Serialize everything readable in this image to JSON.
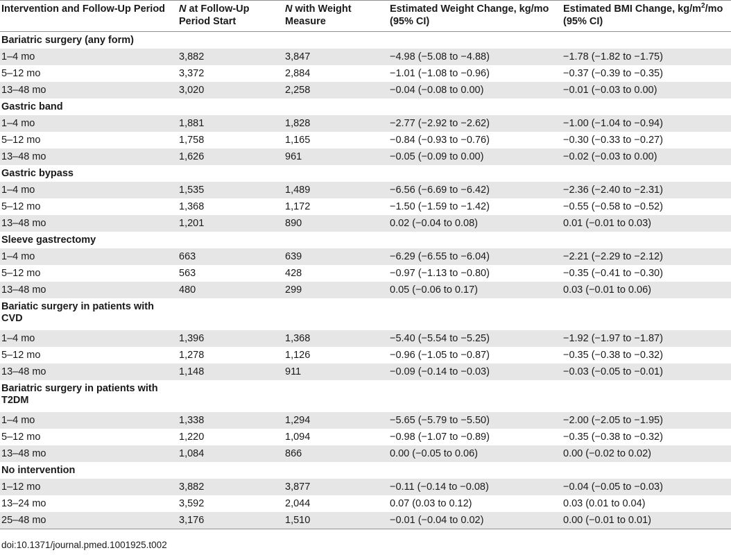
{
  "header": {
    "col1": "Intervention and Follow-Up Period",
    "col2_italic": "N",
    "col2_rest": " at Follow-Up Period Start",
    "col3_italic": "N",
    "col3_rest": " with Weight Measure",
    "col4": "Estimated Weight Change, kg/mo (95% CI)",
    "col5_a": "Estimated BMI Change, kg/m",
    "col5_sup": "2",
    "col5_b": "/mo (95% CI)"
  },
  "groups": [
    {
      "title": "Bariatric surgery (any form)",
      "rows": [
        {
          "period": "1–4 mo",
          "n_start": "3,882",
          "n_weight": "3,847",
          "weight": "−4.98 (−5.08 to −4.88)",
          "bmi": "−1.78 (−1.82 to −1.75)"
        },
        {
          "period": "5–12 mo",
          "n_start": "3,372",
          "n_weight": "2,884",
          "weight": "−1.01 (−1.08 to −0.96)",
          "bmi": "−0.37 (−0.39 to −0.35)"
        },
        {
          "period": "13–48 mo",
          "n_start": "3,020",
          "n_weight": "2,258",
          "weight": "−0.04 (−0.08 to 0.00)",
          "bmi": "−0.01 (−0.03 to 0.00)"
        }
      ]
    },
    {
      "title": "Gastric band",
      "rows": [
        {
          "period": "1–4 mo",
          "n_start": "1,881",
          "n_weight": "1,828",
          "weight": "−2.77 (−2.92 to −2.62)",
          "bmi": "−1.00 (−1.04 to −0.94)"
        },
        {
          "period": "5–12 mo",
          "n_start": "1,758",
          "n_weight": "1,165",
          "weight": "−0.84 (−0.93 to −0.76)",
          "bmi": "−0.30 (−0.33 to −0.27)"
        },
        {
          "period": "13–48 mo",
          "n_start": "1,626",
          "n_weight": "961",
          "weight": "−0.05 (−0.09 to 0.00)",
          "bmi": "−0.02 (−0.03 to 0.00)"
        }
      ]
    },
    {
      "title": "Gastric bypass",
      "rows": [
        {
          "period": "1–4 mo",
          "n_start": "1,535",
          "n_weight": "1,489",
          "weight": "−6.56 (−6.69 to −6.42)",
          "bmi": "−2.36 (−2.40 to −2.31)"
        },
        {
          "period": "5–12 mo",
          "n_start": "1,368",
          "n_weight": "1,172",
          "weight": "−1.50 (−1.59 to −1.42)",
          "bmi": "−0.55 (−0.58 to −0.52)"
        },
        {
          "period": "13–48 mo",
          "n_start": "1,201",
          "n_weight": "890",
          "weight": "0.02 (−0.04 to 0.08)",
          "bmi": "0.01 (−0.01 to 0.03)"
        }
      ]
    },
    {
      "title": "Sleeve gastrectomy",
      "rows": [
        {
          "period": "1–4 mo",
          "n_start": "663",
          "n_weight": "639",
          "weight": "−6.29 (−6.55 to −6.04)",
          "bmi": "−2.21 (−2.29 to −2.12)"
        },
        {
          "period": "5–12 mo",
          "n_start": "563",
          "n_weight": "428",
          "weight": "−0.97 (−1.13 to −0.80)",
          "bmi": "−0.35 (−0.41 to −0.30)"
        },
        {
          "period": "13–48 mo",
          "n_start": "480",
          "n_weight": "299",
          "weight": "0.05 (−0.06 to 0.17)",
          "bmi": "0.03 (−0.01 to 0.06)"
        }
      ]
    },
    {
      "title": "Bariatic surgery in patients with CVD",
      "rows": [
        {
          "period": "1–4 mo",
          "n_start": "1,396",
          "n_weight": "1,368",
          "weight": "−5.40 (−5.54 to −5.25)",
          "bmi": "−1.92 (−1.97 to −1.87)"
        },
        {
          "period": "5–12 mo",
          "n_start": "1,278",
          "n_weight": "1,126",
          "weight": "−0.96 (−1.05 to −0.87)",
          "bmi": "−0.35 (−0.38 to −0.32)"
        },
        {
          "period": "13–48 mo",
          "n_start": "1,148",
          "n_weight": "911",
          "weight": "−0.09 (−0.14 to −0.03)",
          "bmi": "−0.03 (−0.05 to −0.01)"
        }
      ]
    },
    {
      "title": "Bariatric surgery in patients with T2DM",
      "rows": [
        {
          "period": "1–4 mo",
          "n_start": "1,338",
          "n_weight": "1,294",
          "weight": "−5.65 (−5.79 to −5.50)",
          "bmi": "−2.00 (−2.05 to −1.95)"
        },
        {
          "period": "5–12 mo",
          "n_start": "1,220",
          "n_weight": "1,094",
          "weight": "−0.98 (−1.07 to −0.89)",
          "bmi": "−0.35 (−0.38 to −0.32)"
        },
        {
          "period": "13–48 mo",
          "n_start": "1,084",
          "n_weight": "866",
          "weight": "0.00 (−0.05 to 0.06)",
          "bmi": "0.00 (−0.02 to 0.02)"
        }
      ]
    },
    {
      "title": "No intervention",
      "rows": [
        {
          "period": "1–12 mo",
          "n_start": "3,882",
          "n_weight": "3,877",
          "weight": "−0.11 (−0.14 to −0.08)",
          "bmi": "−0.04 (−0.05 to −0.03)"
        },
        {
          "period": "13–24 mo",
          "n_start": "3,592",
          "n_weight": "2,044",
          "weight": "0.07 (0.03 to 0.12)",
          "bmi": "0.03 (0.01 to 0.04)"
        },
        {
          "period": "25–48 mo",
          "n_start": "3,176",
          "n_weight": "1,510",
          "weight": "−0.01 (−0.04 to 0.02)",
          "bmi": "0.00 (−0.01 to 0.01)"
        }
      ]
    }
  ],
  "caption": "doi:10.1371/journal.pmed.1001925.t002"
}
